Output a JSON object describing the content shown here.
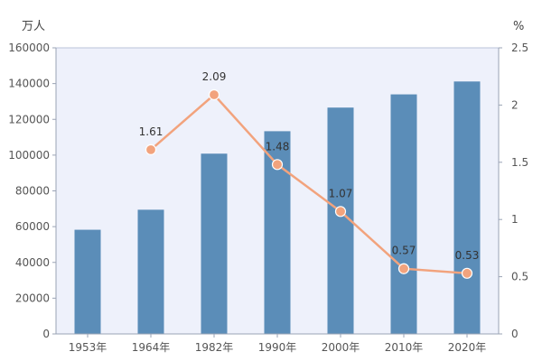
{
  "chart_data": {
    "type": "bar+line",
    "categories": [
      "1953年",
      "1964年",
      "1982年",
      "1990年",
      "2000年",
      "2010年",
      "2020年"
    ],
    "series": [
      {
        "type": "bar",
        "axis": "left",
        "values": [
          58260,
          69458,
          100818,
          113368,
          126583,
          133972,
          141178
        ],
        "color": "#5b8db8"
      },
      {
        "type": "line",
        "axis": "right",
        "values": [
          null,
          1.61,
          2.09,
          1.48,
          1.07,
          0.57,
          0.53
        ],
        "labels": [
          "",
          "1.61",
          "2.09",
          "1.48",
          "1.07",
          "0.57",
          "0.53"
        ],
        "color": "#f2a37d"
      }
    ],
    "left_axis": {
      "unit": "万人",
      "range": [
        0,
        160000
      ],
      "ticks": [
        "0",
        "20000",
        "40000",
        "60000",
        "80000",
        "100000",
        "120000",
        "140000",
        "160000"
      ]
    },
    "right_axis": {
      "unit": "%",
      "range": [
        0,
        2.5
      ],
      "ticks": [
        "0",
        "0.5",
        "1",
        "1.5",
        "2",
        "2.5"
      ]
    },
    "plot_background": "#eef1fb",
    "grid": false,
    "legend": "none"
  }
}
